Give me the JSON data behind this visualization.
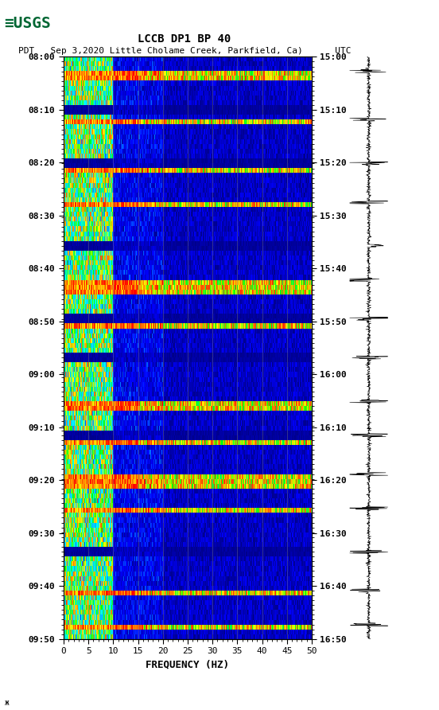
{
  "title_line1": "LCCB DP1 BP 40",
  "title_line2": "PDT   Sep 3,2020 Little Cholame Creek, Parkfield, Ca)      UTC",
  "left_times": [
    "08:00",
    "08:10",
    "08:20",
    "08:30",
    "08:40",
    "08:50",
    "09:00",
    "09:10",
    "09:20",
    "09:30",
    "09:40",
    "09:50"
  ],
  "right_times": [
    "15:00",
    "15:10",
    "15:20",
    "15:30",
    "15:40",
    "15:50",
    "16:00",
    "16:10",
    "16:20",
    "16:30",
    "16:40",
    "16:50"
  ],
  "freq_min": 0,
  "freq_max": 50,
  "freq_ticks": [
    0,
    5,
    10,
    15,
    20,
    25,
    30,
    35,
    40,
    45,
    50
  ],
  "xlabel": "FREQUENCY (HZ)",
  "background_color": "#ffffff",
  "spectrogram_rows": 120,
  "spectrogram_cols": 500
}
